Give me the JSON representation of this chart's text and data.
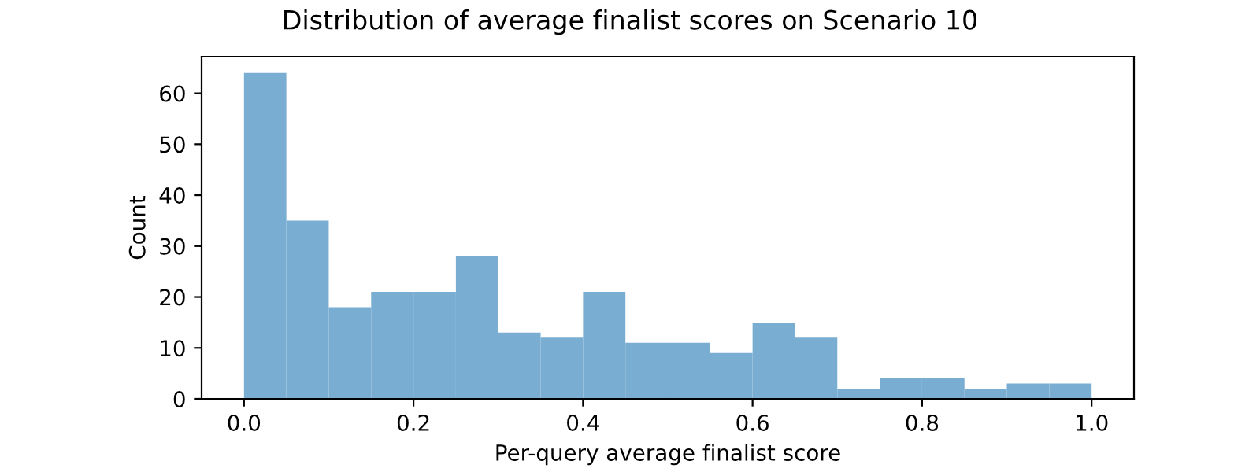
{
  "chart_data": {
    "type": "histogram",
    "title": "Distribution of average finalist scores on Scenario 10",
    "xlabel": "Per-query average finalist score",
    "ylabel": "Count",
    "bins": [
      0,
      0.05,
      0.1,
      0.15,
      0.2,
      0.25,
      0.3,
      0.35,
      0.4,
      0.45,
      0.5,
      0.55,
      0.6,
      0.65,
      0.7,
      0.75,
      0.8,
      0.85,
      0.9,
      0.95,
      1.0
    ],
    "values": [
      64,
      35,
      18,
      21,
      21,
      28,
      13,
      12,
      21,
      11,
      11,
      9,
      15,
      12,
      2,
      4,
      4,
      2,
      3,
      3
    ],
    "color": "#79add2",
    "xlim": [
      -0.05,
      1.05
    ],
    "ylim": [
      0,
      67.2
    ],
    "xticks": [
      {
        "value": 0,
        "label": "0.0"
      },
      {
        "value": 0.2,
        "label": "0.2"
      },
      {
        "value": 0.4,
        "label": "0.4"
      },
      {
        "value": 0.6,
        "label": "0.6"
      },
      {
        "value": 0.8,
        "label": "0.8"
      },
      {
        "value": 1.0,
        "label": "1.0"
      }
    ],
    "yticks": [
      0,
      10,
      20,
      30,
      40,
      50,
      60
    ],
    "grid": false,
    "legend": false
  }
}
